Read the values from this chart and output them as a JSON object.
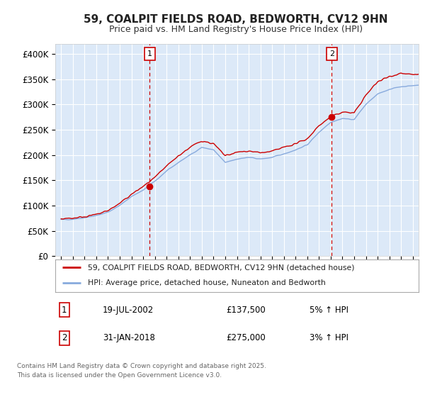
{
  "title": "59, COALPIT FIELDS ROAD, BEDWORTH, CV12 9HN",
  "subtitle": "Price paid vs. HM Land Registry's House Price Index (HPI)",
  "ylabel_ticks": [
    "£0",
    "£50K",
    "£100K",
    "£150K",
    "£200K",
    "£250K",
    "£300K",
    "£350K",
    "£400K"
  ],
  "ylim": [
    0,
    420000
  ],
  "xlim_start": 1994.5,
  "xlim_end": 2025.5,
  "marker1_x": 2002.55,
  "marker1_y": 137500,
  "marker2_x": 2018.08,
  "marker2_y": 275000,
  "marker1_date": "19-JUL-2002",
  "marker1_price": "£137,500",
  "marker1_hpi": "5% ↑ HPI",
  "marker2_date": "31-JAN-2018",
  "marker2_price": "£275,000",
  "marker2_hpi": "3% ↑ HPI",
  "legend_line1": "59, COALPIT FIELDS ROAD, BEDWORTH, CV12 9HN (detached house)",
  "legend_line2": "HPI: Average price, detached house, Nuneaton and Bedworth",
  "footnote_line1": "Contains HM Land Registry data © Crown copyright and database right 2025.",
  "footnote_line2": "This data is licensed under the Open Government Licence v3.0.",
  "line_color_red": "#cc0000",
  "line_color_blue": "#88aadd",
  "bg_color": "#dce9f8",
  "grid_color": "#ffffff",
  "marker_box_color": "#cc0000",
  "fig_bg": "#ffffff"
}
